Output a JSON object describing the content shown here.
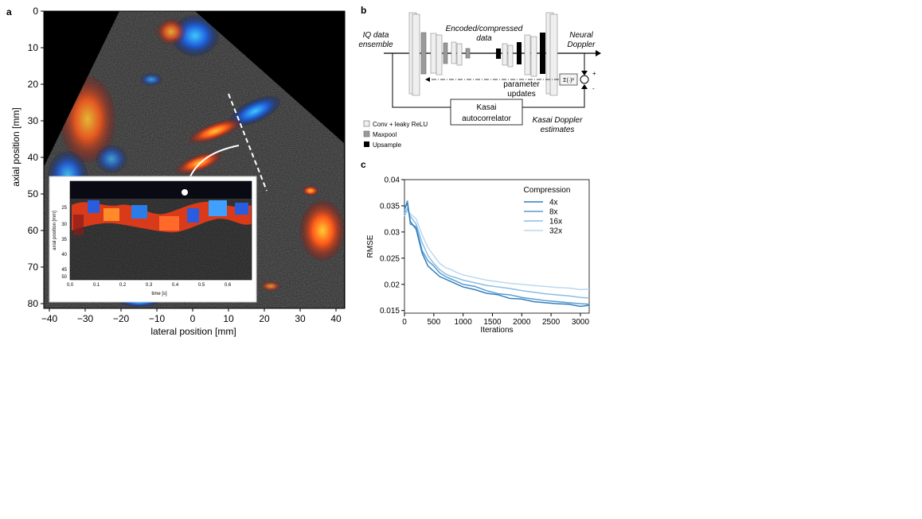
{
  "panels": {
    "a": "a",
    "b": "b",
    "c": "c"
  },
  "panel_a": {
    "xlabel": "lateral position [mm]",
    "ylabel": "axial position [mm]",
    "xticks": [
      "−40",
      "−30",
      "−20",
      "−10",
      "0",
      "10",
      "20",
      "30",
      "40"
    ],
    "yticks": [
      "0",
      "10",
      "20",
      "30",
      "40",
      "50",
      "60",
      "70",
      "80"
    ],
    "inset": {
      "xlabel": "time [s]",
      "ylabel": "axial position [mm]",
      "xticks": [
        "0.0",
        "0.1",
        "0.2",
        "0.3",
        "0.4",
        "0.5",
        "0.6"
      ],
      "yticks": [
        "25",
        "30",
        "35",
        "40",
        "45",
        "50"
      ]
    }
  },
  "panel_b": {
    "input_label_1": "IQ data",
    "input_label_2": "ensemble",
    "encoded_label_1": "Encoded/compressed",
    "encoded_label_2": "data",
    "output_label_1": "Neural",
    "output_label_2": "Doppler",
    "loss_label": "Σ(·)²",
    "plus": "+",
    "minus": "-",
    "param_label_1": "parameter",
    "param_label_2": "updates",
    "kasai_box_1": "Kasai",
    "kasai_box_2": "autocorrelator",
    "kasai_est_1": "Kasai Doppler",
    "kasai_est_2": "estimates",
    "legend": [
      {
        "label": "Conv + leaky ReLU",
        "color": "#e8e8e8"
      },
      {
        "label": "Maxpool",
        "color": "#9a9a9a"
      },
      {
        "label": "Upsample",
        "color": "#000000"
      }
    ]
  },
  "chart_data": {
    "type": "line",
    "title": "",
    "xlabel": "Iterations",
    "ylabel": "RMSE",
    "xlim": [
      0,
      3150
    ],
    "ylim": [
      0.0145,
      0.04
    ],
    "xticks": [
      0,
      500,
      1000,
      1500,
      2000,
      2500,
      3000
    ],
    "yticks": [
      0.015,
      0.02,
      0.025,
      0.03,
      0.035,
      0.04
    ],
    "ytick_labels": [
      "0.015",
      "0.02",
      "0.025",
      "0.03",
      "0.035",
      "0.04"
    ],
    "legend_title": "Compression",
    "legend_position": "top-right",
    "grid": false,
    "x": [
      0,
      50,
      100,
      200,
      300,
      400,
      500,
      600,
      700,
      800,
      900,
      1000,
      1200,
      1400,
      1600,
      1800,
      2000,
      2200,
      2400,
      2600,
      2800,
      3000,
      3150
    ],
    "series": [
      {
        "name": "4x",
        "color": "#2f7fbf",
        "values": [
          0.0345,
          0.0355,
          0.032,
          0.0305,
          0.026,
          0.0235,
          0.0225,
          0.0215,
          0.021,
          0.0205,
          0.02,
          0.0195,
          0.019,
          0.0183,
          0.018,
          0.0173,
          0.0172,
          0.0167,
          0.0165,
          0.0163,
          0.0162,
          0.0158,
          0.016
        ]
      },
      {
        "name": "8x",
        "color": "#5a9bd0",
        "values": [
          0.034,
          0.036,
          0.0315,
          0.031,
          0.0265,
          0.0245,
          0.0235,
          0.0222,
          0.0215,
          0.021,
          0.0205,
          0.02,
          0.0196,
          0.0188,
          0.0182,
          0.018,
          0.0175,
          0.0172,
          0.0169,
          0.0167,
          0.0165,
          0.0163,
          0.0162
        ]
      },
      {
        "name": "16x",
        "color": "#8cbde3",
        "values": [
          0.0335,
          0.0345,
          0.033,
          0.0315,
          0.028,
          0.0255,
          0.024,
          0.0228,
          0.022,
          0.0215,
          0.0212,
          0.0208,
          0.0203,
          0.0198,
          0.0195,
          0.0192,
          0.0188,
          0.0185,
          0.0182,
          0.018,
          0.0178,
          0.0175,
          0.0174
        ]
      },
      {
        "name": "32x",
        "color": "#bcd9ef",
        "values": [
          0.033,
          0.034,
          0.0335,
          0.0325,
          0.0295,
          0.027,
          0.0255,
          0.024,
          0.0232,
          0.0228,
          0.0222,
          0.0218,
          0.0213,
          0.0208,
          0.0205,
          0.0202,
          0.02,
          0.0198,
          0.0196,
          0.0194,
          0.0193,
          0.019,
          0.0191
        ]
      }
    ]
  }
}
